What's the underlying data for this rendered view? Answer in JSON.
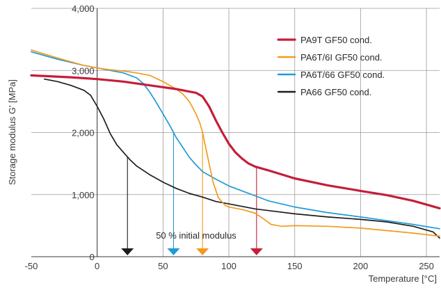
{
  "chart_data": {
    "type": "line",
    "xlabel": "Temperature [°C]",
    "ylabel": "Storage modulus G' [MPa]",
    "xlim": [
      -50,
      260
    ],
    "ylim": [
      0,
      4000
    ],
    "xticks": [
      -50,
      0,
      50,
      100,
      150,
      200,
      250
    ],
    "xtick_labels": [
      "-50",
      "0",
      "50",
      "100",
      "150",
      "200",
      "250"
    ],
    "yticks": [
      0,
      1000,
      2000,
      3000,
      4000
    ],
    "ytick_labels": [
      "0",
      "1,000",
      "2,000",
      "3,000",
      "4,000"
    ],
    "grid": true,
    "legend_position": "top-right",
    "series": [
      {
        "name": "PA9T GF50 cond.",
        "color": "#c41e3a",
        "width": 3.2,
        "marker_x": 121,
        "x": [
          -50,
          -20,
          0,
          20,
          40,
          60,
          75,
          80,
          85,
          90,
          95,
          100,
          105,
          110,
          115,
          120,
          130,
          150,
          175,
          200,
          220,
          240,
          260
        ],
        "y": [
          2920,
          2890,
          2860,
          2820,
          2760,
          2700,
          2640,
          2580,
          2420,
          2200,
          2000,
          1820,
          1680,
          1580,
          1500,
          1450,
          1390,
          1260,
          1150,
          1060,
          990,
          900,
          780
        ]
      },
      {
        "name": "PA6T/6I GF50 cond.",
        "color": "#f39a1e",
        "width": 1.7,
        "marker_x": 80,
        "x": [
          -50,
          -30,
          -10,
          0,
          10,
          20,
          30,
          40,
          50,
          60,
          65,
          70,
          75,
          78,
          80,
          82,
          85,
          88,
          92,
          97,
          100,
          110,
          120,
          127,
          132,
          140,
          150,
          175,
          200,
          220,
          240,
          260
        ],
        "y": [
          3330,
          3200,
          3080,
          3040,
          3010,
          2990,
          2960,
          2920,
          2820,
          2700,
          2620,
          2500,
          2300,
          2150,
          2000,
          1800,
          1500,
          1200,
          950,
          830,
          800,
          760,
          700,
          600,
          520,
          490,
          500,
          490,
          460,
          420,
          380,
          330
        ]
      },
      {
        "name": "PA6T/66 GF50 cond.",
        "color": "#1e9bd7",
        "width": 1.7,
        "marker_x": 58,
        "x": [
          -50,
          -30,
          -10,
          0,
          10,
          20,
          30,
          35,
          40,
          45,
          50,
          55,
          58,
          60,
          65,
          70,
          75,
          80,
          90,
          100,
          110,
          120,
          130,
          150,
          175,
          200,
          220,
          240,
          260
        ],
        "y": [
          3300,
          3180,
          3080,
          3040,
          3000,
          2960,
          2880,
          2790,
          2650,
          2480,
          2300,
          2120,
          2000,
          1920,
          1760,
          1600,
          1480,
          1370,
          1250,
          1140,
          1060,
          980,
          900,
          800,
          710,
          640,
          580,
          520,
          450
        ]
      },
      {
        "name": "PA66 GF50 cond.",
        "color": "#1d1d1b",
        "width": 1.7,
        "marker_x": 23,
        "x": [
          -40,
          -30,
          -20,
          -10,
          -5,
          0,
          5,
          10,
          15,
          20,
          25,
          30,
          40,
          50,
          60,
          70,
          80,
          90,
          100,
          120,
          150,
          175,
          200,
          220,
          240,
          255,
          260
        ],
        "y": [
          2860,
          2820,
          2760,
          2680,
          2600,
          2420,
          2220,
          1980,
          1800,
          1680,
          1560,
          1460,
          1320,
          1200,
          1100,
          1020,
          960,
          890,
          850,
          770,
          690,
          640,
          600,
          560,
          490,
          400,
          300
        ]
      }
    ],
    "annotation": "50 % initial modulus"
  }
}
